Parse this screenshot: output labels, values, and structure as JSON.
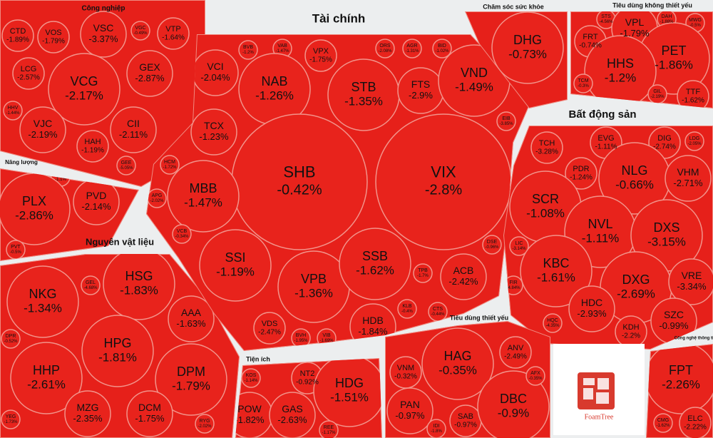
{
  "sectors": [
    {
      "name": "Công nghiệp",
      "stocks": [
        {
          "ticker": "CTD",
          "change": "-1.89%"
        },
        {
          "ticker": "VOS",
          "change": "-1.79%"
        },
        {
          "ticker": "VSC",
          "change": "-3.37%"
        },
        {
          "ticker": "VGC",
          "change": "-0.49%"
        },
        {
          "ticker": "VTP",
          "change": "-1.64%"
        },
        {
          "ticker": "LCG",
          "change": "-2.57%"
        },
        {
          "ticker": "VCG",
          "change": "-2.17%"
        },
        {
          "ticker": "GEX",
          "change": "-2.87%"
        },
        {
          "ticker": "HHV",
          "change": "-1.44%"
        },
        {
          "ticker": "VJC",
          "change": "-2.19%"
        },
        {
          "ticker": "CII",
          "change": "-2.11%"
        },
        {
          "ticker": "HAH",
          "change": "-1.19%"
        },
        {
          "ticker": "GEE",
          "change": "-5.05%"
        }
      ]
    },
    {
      "name": "Năng lượng",
      "stocks": [
        {
          "ticker": "PVF",
          "change": "-1.1%"
        },
        {
          "ticker": "PLX",
          "change": "-2.86%"
        },
        {
          "ticker": "PVD",
          "change": "-2.14%"
        },
        {
          "ticker": "PVT",
          "change": "-0.5%"
        }
      ]
    },
    {
      "name": "Nguyên vật liệu",
      "stocks": [
        {
          "ticker": "NKG",
          "change": "-1.34%"
        },
        {
          "ticker": "HSG",
          "change": "-1.83%"
        },
        {
          "ticker": "GEL",
          "change": "-4.68%"
        },
        {
          "ticker": "AAA",
          "change": "-1.63%"
        },
        {
          "ticker": "HPG",
          "change": "-1.81%"
        },
        {
          "ticker": "HHP",
          "change": "-2.61%"
        },
        {
          "ticker": "DPM",
          "change": "-1.79%"
        },
        {
          "ticker": "MZG",
          "change": "-2.35%"
        },
        {
          "ticker": "DCM",
          "change": "-1.75%"
        },
        {
          "ticker": "DPR",
          "change": "-0.52%"
        },
        {
          "ticker": "YEG",
          "change": "-1.73%"
        },
        {
          "ticker": "RYG",
          "change": "-2.02%"
        }
      ]
    },
    {
      "name": "Tài chính",
      "stocks": [
        {
          "ticker": "BVB",
          "change": "-1.2%"
        },
        {
          "ticker": "VAB",
          "change": "-1.47%"
        },
        {
          "ticker": "VPX",
          "change": "-1.75%"
        },
        {
          "ticker": "ORS",
          "change": "-2.08%"
        },
        {
          "ticker": "AGR",
          "change": "-1.31%"
        },
        {
          "ticker": "BID",
          "change": "-1.02%"
        },
        {
          "ticker": "VCI",
          "change": "-2.04%"
        },
        {
          "ticker": "NAB",
          "change": "-1.26%"
        },
        {
          "ticker": "STB",
          "change": "-1.35%"
        },
        {
          "ticker": "FTS",
          "change": "-2.9%"
        },
        {
          "ticker": "VND",
          "change": "-1.49%"
        },
        {
          "ticker": "EIB",
          "change": "-3.85%"
        },
        {
          "ticker": "TCX",
          "change": "-1.23%"
        },
        {
          "ticker": "HCM",
          "change": "-1.72%"
        },
        {
          "ticker": "SHB",
          "change": "-0.42%"
        },
        {
          "ticker": "VIX",
          "change": "-2.8%"
        },
        {
          "ticker": "MBB",
          "change": "-1.47%"
        },
        {
          "ticker": "APG",
          "change": "-2.02%"
        },
        {
          "ticker": "VCB",
          "change": "-0.34%"
        },
        {
          "ticker": "DSE",
          "change": "-0.96%"
        },
        {
          "ticker": "SSI",
          "change": "-1.19%"
        },
        {
          "ticker": "VPB",
          "change": "-1.36%"
        },
        {
          "ticker": "SSB",
          "change": "-1.62%"
        },
        {
          "ticker": "TPB",
          "change": "-1.7%"
        },
        {
          "ticker": "ACB",
          "change": "-2.42%"
        },
        {
          "ticker": "VDS",
          "change": "-2.47%"
        },
        {
          "ticker": "BVH",
          "change": "-1.95%"
        },
        {
          "ticker": "VIB",
          "change": "-1.69%"
        },
        {
          "ticker": "HDB",
          "change": "-1.84%"
        },
        {
          "ticker": "KLB",
          "change": "-0.4%"
        },
        {
          "ticker": "CTS",
          "change": "-0.44%"
        }
      ]
    },
    {
      "name": "Chăm sóc sức khỏe",
      "stocks": [
        {
          "ticker": "DHG",
          "change": "-0.73%"
        }
      ]
    },
    {
      "name": "Tiêu dùng không thiết yếu",
      "stocks": [
        {
          "ticker": "STS",
          "change": "-4.56%"
        },
        {
          "ticker": "DAH",
          "change": "-1.88%"
        },
        {
          "ticker": "MWG",
          "change": "-0.5%"
        },
        {
          "ticker": "VPL",
          "change": "-1.79%"
        },
        {
          "ticker": "FRT",
          "change": "-0.74%"
        },
        {
          "ticker": "PET",
          "change": "-1.86%"
        },
        {
          "ticker": "HHS",
          "change": "-1.2%"
        },
        {
          "ticker": "TCM",
          "change": "-0.3%"
        },
        {
          "ticker": "GIL",
          "change": "-2.19%"
        },
        {
          "ticker": "TTF",
          "change": "-1.62%"
        }
      ]
    },
    {
      "name": "Bất động sản",
      "stocks": [
        {
          "ticker": "TCH",
          "change": "-3.28%"
        },
        {
          "ticker": "EVG",
          "change": "-1.11%"
        },
        {
          "ticker": "DIG",
          "change": "-2.74%"
        },
        {
          "ticker": "LDG",
          "change": "-2.05%"
        },
        {
          "ticker": "PDR",
          "change": "-1.24%"
        },
        {
          "ticker": "NLG",
          "change": "-0.66%"
        },
        {
          "ticker": "VHM",
          "change": "-2.71%"
        },
        {
          "ticker": "SCR",
          "change": "-1.08%"
        },
        {
          "ticker": "NVL",
          "change": "-1.11%"
        },
        {
          "ticker": "DXS",
          "change": "-3.15%"
        },
        {
          "ticker": "LIC",
          "change": "-3.14%"
        },
        {
          "ticker": "KBC",
          "change": "-1.61%"
        },
        {
          "ticker": "FIR",
          "change": "-4.84%"
        },
        {
          "ticker": "DXG",
          "change": "-2.69%"
        },
        {
          "ticker": "VRE",
          "change": "-3.34%"
        },
        {
          "ticker": "HDC",
          "change": "-2.93%"
        },
        {
          "ticker": "HQC",
          "change": "-4.35%"
        },
        {
          "ticker": "SZC",
          "change": "-0.99%"
        },
        {
          "ticker": "KDH",
          "change": "-2.2%"
        }
      ]
    },
    {
      "name": "Tiện ích",
      "stocks": [
        {
          "ticker": "KOS",
          "change": "-1.14%"
        },
        {
          "ticker": "NT2",
          "change": "-0.92%"
        },
        {
          "ticker": "POW",
          "change": "-1.82%"
        },
        {
          "ticker": "GAS",
          "change": "-2.63%"
        },
        {
          "ticker": "HDG",
          "change": "-1.51%"
        },
        {
          "ticker": "REE",
          "change": "-1.17%"
        }
      ]
    },
    {
      "name": "Tiêu dùng thiết yếu",
      "stocks": [
        {
          "ticker": "VNM",
          "change": "-0.32%"
        },
        {
          "ticker": "HAG",
          "change": "-0.35%"
        },
        {
          "ticker": "ANV",
          "change": "-2.49%"
        },
        {
          "ticker": "PAN",
          "change": "-0.97%"
        },
        {
          "ticker": "SAB",
          "change": "-0.97%"
        },
        {
          "ticker": "DBC",
          "change": "-0.9%"
        },
        {
          "ticker": "AFX",
          "change": "-0.35%"
        },
        {
          "ticker": "IDI",
          "change": "-1.8%"
        }
      ]
    },
    {
      "name": "Công nghệ thông tin",
      "stocks": [
        {
          "ticker": "FPT",
          "change": "-2.26%"
        },
        {
          "ticker": "CMG",
          "change": "-1.62%"
        },
        {
          "ticker": "ELC",
          "change": "-2.22%"
        }
      ]
    }
  ],
  "logo": "FoamTree"
}
